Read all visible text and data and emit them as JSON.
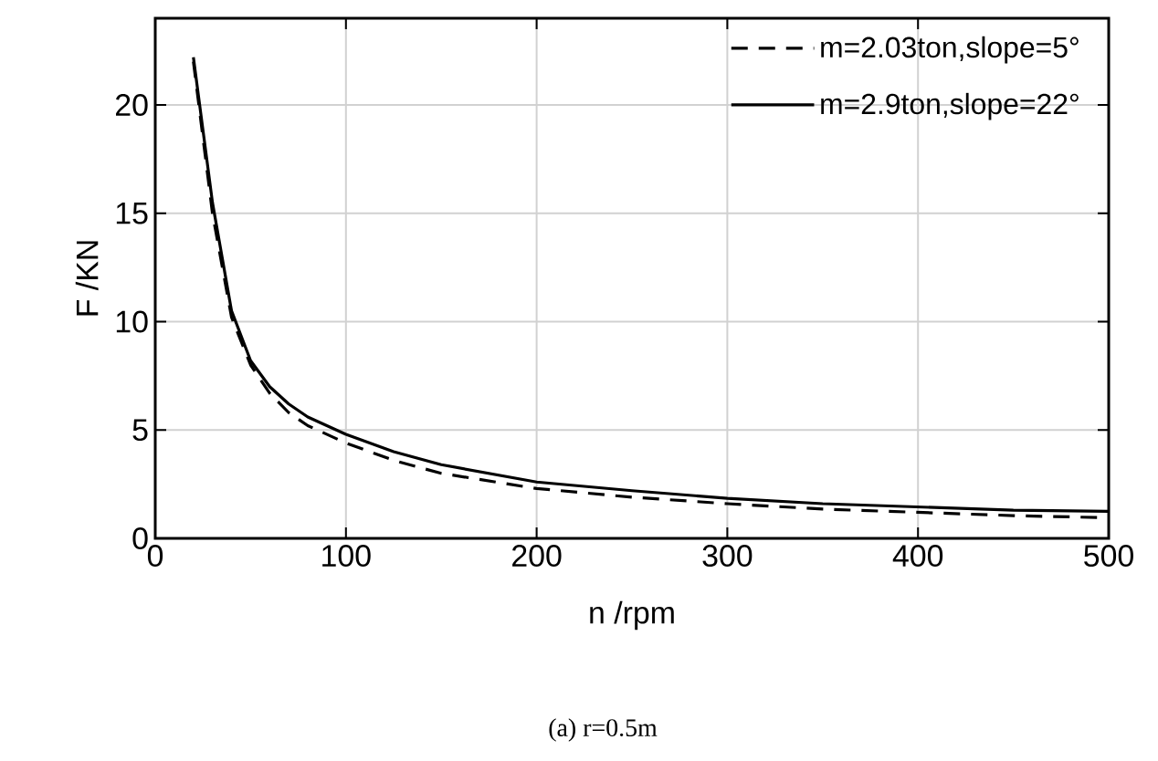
{
  "chart_data": {
    "type": "line",
    "xlabel": "n /rpm",
    "ylabel": "F /KN",
    "xlim": [
      0,
      500
    ],
    "xticks": [
      0,
      100,
      200,
      300,
      400,
      500
    ],
    "ylim": [
      0,
      24
    ],
    "yticks": [
      0,
      5,
      10,
      15,
      20
    ],
    "grid": true,
    "legend": "top right",
    "marker": "none",
    "x": [
      20,
      30,
      40,
      50,
      60,
      70,
      80,
      100,
      125,
      150,
      200,
      250,
      300,
      350,
      400,
      450,
      500
    ],
    "series": [
      {
        "name": "m=2.03ton,slope=5°",
        "color": "#000000",
        "line_style": "dashed",
        "values": [
          22.0,
          15.0,
          10.2,
          8.0,
          6.7,
          5.8,
          5.2,
          4.4,
          3.6,
          3.0,
          2.3,
          1.9,
          1.6,
          1.35,
          1.2,
          1.05,
          0.95
        ]
      },
      {
        "name": "m=2.9ton,slope=22°",
        "color": "#000000",
        "line_style": "solid",
        "values": [
          22.2,
          15.5,
          10.5,
          8.2,
          7.0,
          6.2,
          5.6,
          4.8,
          4.0,
          3.4,
          2.6,
          2.2,
          1.85,
          1.6,
          1.45,
          1.3,
          1.25
        ]
      }
    ],
    "annotations": [
      "(a) r=0.5m"
    ]
  }
}
